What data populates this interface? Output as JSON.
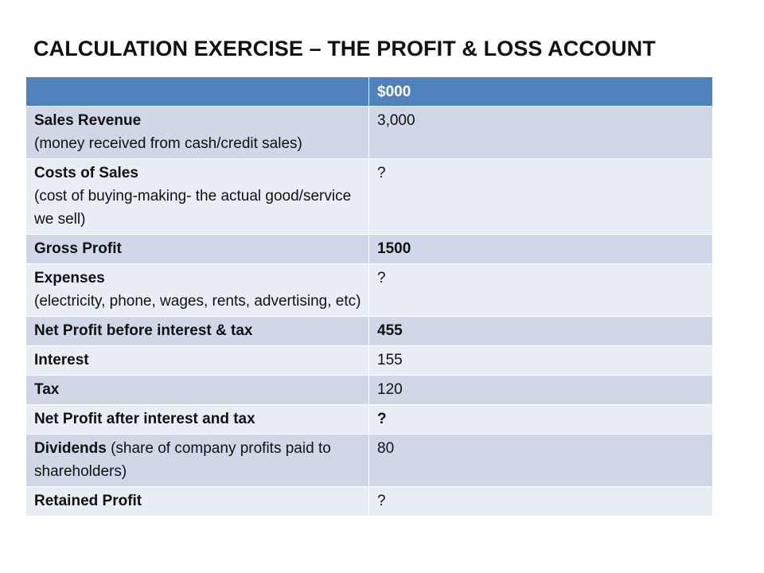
{
  "slide": {
    "title": "CALCULATION EXERCISE – THE PROFIT & LOSS ACCOUNT"
  },
  "table": {
    "header": {
      "label": "",
      "unit": "$000"
    },
    "rows": [
      {
        "name": "Sales Revenue",
        "note": "(money received from cash/credit sales)",
        "value": "3,000"
      },
      {
        "name": "Costs of Sales",
        "note": "(cost of buying-making- the actual good/service we sell)",
        "value": "?"
      },
      {
        "name": "Gross Profit",
        "note": "",
        "value": "1500"
      },
      {
        "name": "Expenses",
        "note": "(electricity, phone, wages, rents, advertising, etc)",
        "value": "?"
      },
      {
        "name": "Net Profit before interest & tax",
        "note": "",
        "value": "455"
      },
      {
        "name": "Interest",
        "note": "",
        "value": "155"
      },
      {
        "name": "Tax",
        "note": "",
        "value": "120"
      },
      {
        "name": "Net Profit after interest and tax",
        "note": "",
        "value": "?"
      },
      {
        "name": "Dividends",
        "note": " (share of company profits paid to shareholders)",
        "value": "80"
      },
      {
        "name": "Retained Profit",
        "note": "",
        "value": "?"
      }
    ]
  },
  "colors": {
    "header_bg": "#4f81bd",
    "band_dark": "#d0d8e8",
    "band_light": "#e9edf4"
  }
}
